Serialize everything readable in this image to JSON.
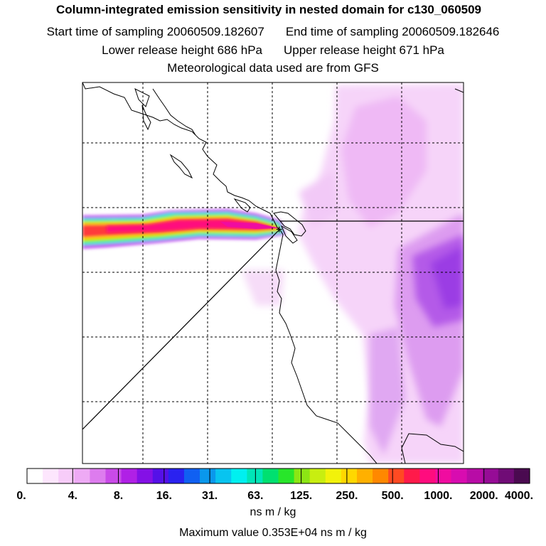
{
  "header": {
    "title": "Column-integrated emission sensitivity in nested domain for c130_060509",
    "start_label": "Start time of sampling 20060509.182607",
    "end_label": "End time of sampling 20060509.182646",
    "lower_label": "Lower release height  686 hPa",
    "upper_label": "Upper release height  671 hPa",
    "met_label": "Meteorological data used are from GFS"
  },
  "chart_data": {
    "type": "heatmap",
    "title": "Column-integrated emission sensitivity in nested domain for c130_060509",
    "legend_ticks": [
      "0.",
      "4.",
      "8.",
      "16.",
      "31.",
      "63.",
      "125.",
      "250.",
      "500.",
      "1000.",
      "2000.",
      "4000."
    ],
    "legend_colors": [
      "#ffffff",
      "#fde6fd",
      "#f7ccf9",
      "#eeaaf5",
      "#dd7cee",
      "#c94ae8",
      "#b020e6",
      "#8410e6",
      "#5510e8",
      "#2a22f0",
      "#1060f2",
      "#0a98ec",
      "#08c4f0",
      "#00f0f0",
      "#00e6b8",
      "#00e070",
      "#28e62a",
      "#8ce614",
      "#c8ee10",
      "#f2f20a",
      "#ffd800",
      "#ffb000",
      "#ff8800",
      "#ff4a22",
      "#ff1a4a",
      "#ff0c7e",
      "#f00ca0",
      "#d80cb0",
      "#b80ca6",
      "#960c96",
      "#700c76",
      "#4a0a50"
    ],
    "colorbar_label": "ns m / kg",
    "max_value_text": "Maximum value  0.353E+04 ns m / kg",
    "release_marker": "+"
  }
}
